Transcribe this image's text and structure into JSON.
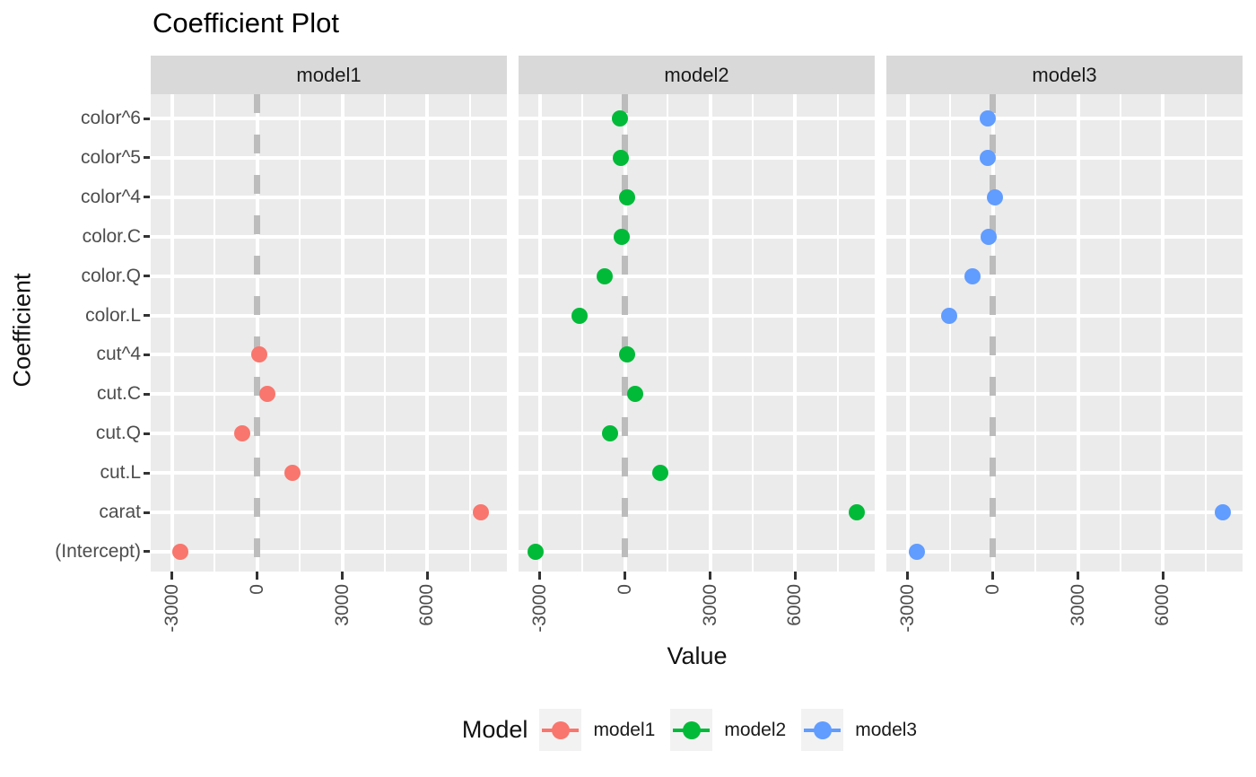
{
  "chart_data": {
    "type": "scatter",
    "title": "Coefficient Plot",
    "xlabel": "Value",
    "ylabel": "Coefficient",
    "legend_title": "Model",
    "legend_position": "bottom",
    "facets": [
      "model1",
      "model2",
      "model3"
    ],
    "coefficients_top_to_bottom": [
      "color^6",
      "color^5",
      "color^4",
      "color.C",
      "color.Q",
      "color.L",
      "cut^4",
      "cut.C",
      "cut.Q",
      "cut.L",
      "carat",
      "(Intercept)"
    ],
    "x_ticks": [
      -3000,
      0,
      3000,
      6000
    ],
    "x_minor_gridlines": [
      -1500,
      1500,
      4500,
      7500
    ],
    "xlim": [
      -3750,
      8800
    ],
    "reference_line": {
      "x": 0,
      "linetype": "dashed"
    },
    "grid": true,
    "series": [
      {
        "name": "model1",
        "color": "#F8766D",
        "values": {
          "(Intercept)": -2701,
          "carat": 7871,
          "cut.L": 1240,
          "cut.Q": -529,
          "cut.C": 368,
          "cut^4": 75
        }
      },
      {
        "name": "model2",
        "color": "#00BA38",
        "values": {
          "(Intercept)": -3160,
          "carat": 8165,
          "cut.L": 1235,
          "cut.Q": -535,
          "cut.C": 355,
          "cut^4": 70,
          "color.L": -1600,
          "color.Q": -715,
          "color.C": -115,
          "color^4": 75,
          "color^5": -155,
          "color^6": -175
        }
      },
      {
        "name": "model3",
        "color": "#619CFF",
        "values": {
          "(Intercept)": -2685,
          "carat": 8090,
          "color.L": -1545,
          "color.Q": -720,
          "color.C": -135,
          "color^4": 85,
          "color^5": -165,
          "color^6": -185
        }
      }
    ]
  },
  "colors": {
    "panel_bg": "#EBEBEB",
    "strip_bg": "#D9D9D9",
    "gridline": "#FFFFFF",
    "dashed_reference": "#BCBCBC",
    "axis_text": "#4D4D4D",
    "tick_mark": "#333333",
    "strip_text": "#1A1A1A",
    "legend_key_bg": "#F2F2F2",
    "model1": "#F8766D",
    "model2": "#00BA38",
    "model3": "#619CFF"
  }
}
